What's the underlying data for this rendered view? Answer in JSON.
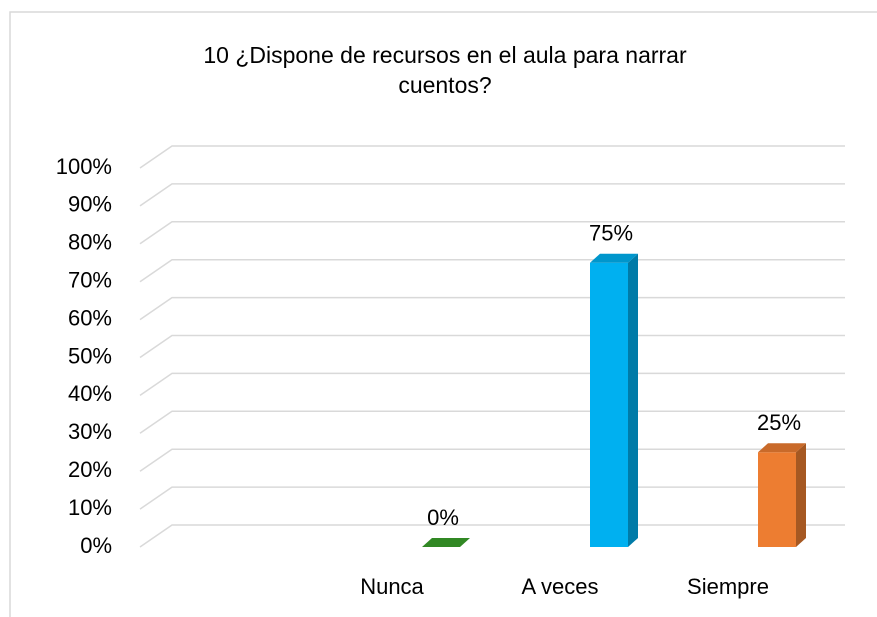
{
  "chart_data": {
    "type": "bar3d",
    "title": "10 ¿Dispone de recursos en el aula para narrar cuentos?",
    "categories": [
      "Nunca",
      "A veces",
      "Siempre"
    ],
    "values": [
      0,
      75,
      25
    ],
    "value_labels": [
      "0%",
      "75%",
      "25%"
    ],
    "colors": [
      "#3aa02a",
      "#00b0f0",
      "#ed7d31"
    ],
    "ylim": [
      0,
      100
    ],
    "yticks": [
      {
        "value": 0,
        "label": "0%"
      },
      {
        "value": 10,
        "label": "10%"
      },
      {
        "value": 20,
        "label": "20%"
      },
      {
        "value": 30,
        "label": "30%"
      },
      {
        "value": 40,
        "label": "40%"
      },
      {
        "value": 50,
        "label": "50%"
      },
      {
        "value": 60,
        "label": "60%"
      },
      {
        "value": 70,
        "label": "70%"
      },
      {
        "value": 80,
        "label": "80%"
      },
      {
        "value": 90,
        "label": "90%"
      },
      {
        "value": 100,
        "label": "100%"
      }
    ],
    "grid": true
  }
}
